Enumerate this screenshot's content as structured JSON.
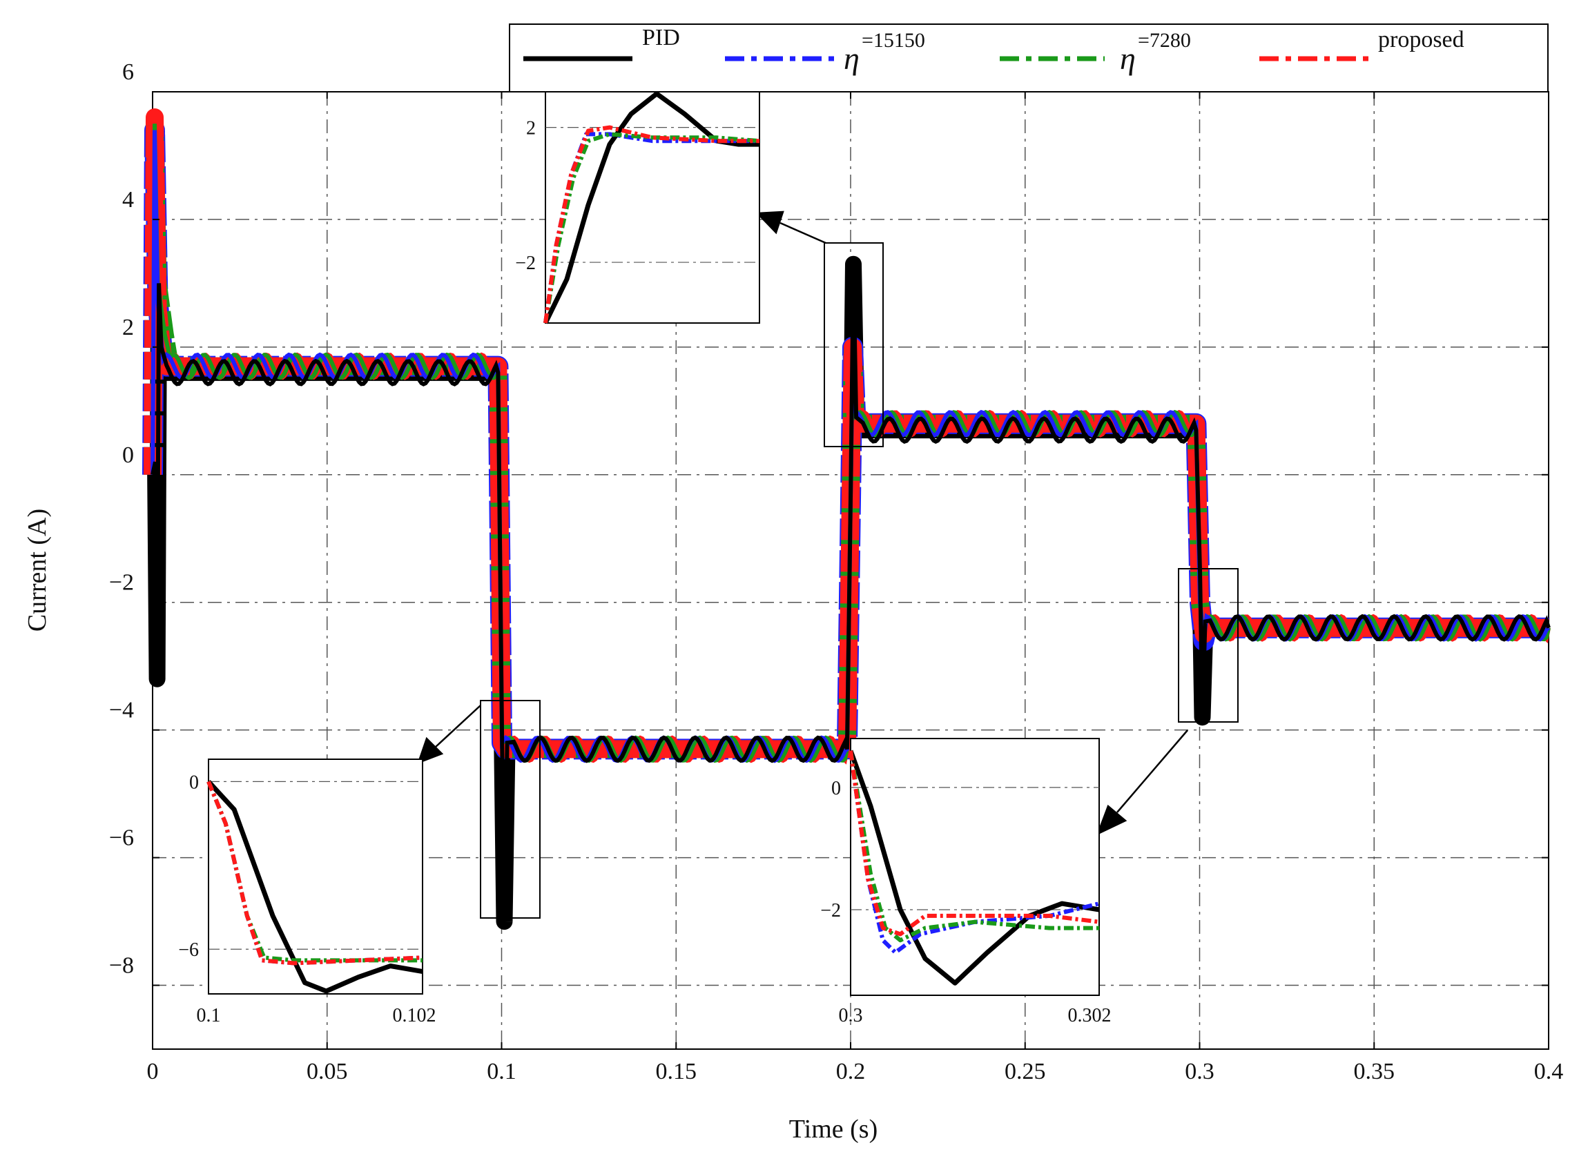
{
  "chart_data": {
    "type": "line",
    "title": "",
    "xlabel": "Time (s)",
    "ylabel": "Current (A)",
    "xlim": [
      0,
      0.4
    ],
    "ylim": [
      -9,
      6
    ],
    "xticks": [
      0,
      0.05,
      0.1,
      0.15,
      0.2,
      0.25,
      0.3,
      0.35,
      0.4
    ],
    "xtick_labels": [
      "0",
      "0.05",
      "0.1",
      "0.15",
      "0.2",
      "0.25",
      "0.3",
      "0.35",
      "0.4"
    ],
    "yticks": [
      6,
      4,
      2,
      0,
      -2,
      -4,
      -6,
      -8
    ],
    "ytick_labels": [
      "6",
      "4",
      "2",
      "0",
      "−2",
      "−4",
      "−6",
      "−8"
    ],
    "grid": true,
    "legend_position": "top",
    "legend": [
      {
        "key": "pid",
        "label": "PID",
        "symbol": "",
        "superscript": ""
      },
      {
        "key": "eta15150",
        "label": "",
        "symbol": "η",
        "superscript": "=15150"
      },
      {
        "key": "eta7280",
        "label": "",
        "symbol": "η",
        "superscript": "=7280"
      },
      {
        "key": "proposed",
        "label": "proposed",
        "symbol": "",
        "superscript": ""
      }
    ],
    "series": [
      {
        "name": "PID",
        "color": "#000000",
        "dash": "solid",
        "points": [
          [
            0,
            0
          ],
          [
            0.0008,
            0.2
          ],
          [
            0.0013,
            -3.2
          ],
          [
            0.0018,
            3.0
          ],
          [
            0.0025,
            2.0
          ],
          [
            0.004,
            1.6
          ],
          [
            0.099,
            1.6
          ],
          [
            0.1001,
            -4.0
          ],
          [
            0.1008,
            -7.0
          ],
          [
            0.1016,
            -4.2
          ],
          [
            0.1035,
            -4.3
          ],
          [
            0.199,
            -4.3
          ],
          [
            0.2001,
            0.0
          ],
          [
            0.2008,
            3.3
          ],
          [
            0.2016,
            0.9
          ],
          [
            0.2035,
            0.7
          ],
          [
            0.299,
            0.7
          ],
          [
            0.3001,
            -1.5
          ],
          [
            0.3008,
            -3.8
          ],
          [
            0.3016,
            -2.3
          ],
          [
            0.303,
            -2.4
          ],
          [
            0.4,
            -2.4
          ]
        ]
      },
      {
        "name": "η=15150",
        "color": "#1f1fff",
        "dash": "dash",
        "points": [
          [
            0,
            0
          ],
          [
            0.0006,
            5.4
          ],
          [
            0.0015,
            2.7
          ],
          [
            0.003,
            1.8
          ],
          [
            0.004,
            1.7
          ],
          [
            0.099,
            1.7
          ],
          [
            0.1001,
            -4.2
          ],
          [
            0.1012,
            -4.3
          ],
          [
            0.199,
            -4.3
          ],
          [
            0.2001,
            0.0
          ],
          [
            0.2006,
            2.0
          ],
          [
            0.2015,
            0.8
          ],
          [
            0.299,
            0.8
          ],
          [
            0.3001,
            -2.0
          ],
          [
            0.3012,
            -2.6
          ],
          [
            0.302,
            -2.4
          ],
          [
            0.4,
            -2.4
          ]
        ]
      },
      {
        "name": "η=7280",
        "color": "#1a9a1a",
        "dash": "dashdot",
        "points": [
          [
            0,
            0
          ],
          [
            0.0006,
            5.5
          ],
          [
            0.0015,
            3.0
          ],
          [
            0.0035,
            2.2
          ],
          [
            0.005,
            1.7
          ],
          [
            0.099,
            1.7
          ],
          [
            0.1001,
            -4.2
          ],
          [
            0.1012,
            -4.3
          ],
          [
            0.199,
            -4.3
          ],
          [
            0.2001,
            0.0
          ],
          [
            0.2006,
            2.0
          ],
          [
            0.2015,
            0.8
          ],
          [
            0.299,
            0.8
          ],
          [
            0.3001,
            -2.0
          ],
          [
            0.3012,
            -2.5
          ],
          [
            0.302,
            -2.4
          ],
          [
            0.4,
            -2.4
          ]
        ]
      },
      {
        "name": "proposed",
        "color": "#ff1a1a",
        "dash": "dashdot",
        "points": [
          [
            0,
            0
          ],
          [
            0.0006,
            5.6
          ],
          [
            0.0015,
            2.6
          ],
          [
            0.003,
            1.8
          ],
          [
            0.004,
            1.7
          ],
          [
            0.099,
            1.7
          ],
          [
            0.1001,
            -4.2
          ],
          [
            0.1012,
            -4.3
          ],
          [
            0.199,
            -4.3
          ],
          [
            0.2001,
            0.0
          ],
          [
            0.2006,
            2.0
          ],
          [
            0.2015,
            0.8
          ],
          [
            0.299,
            0.8
          ],
          [
            0.3001,
            -2.0
          ],
          [
            0.3012,
            -2.5
          ],
          [
            0.302,
            -2.4
          ],
          [
            0.4,
            -2.4
          ]
        ]
      }
    ],
    "insets": [
      {
        "name": "zoom-0.1",
        "xtick_labels": [
          "0.1",
          "0.102"
        ],
        "ytick_labels": [
          "0",
          "−6"
        ],
        "series": [
          {
            "name": "PID",
            "points": [
              [
                0,
                0
              ],
              [
                0.12,
                -1.0
              ],
              [
                0.3,
                -4.8
              ],
              [
                0.45,
                -7.2
              ],
              [
                0.55,
                -7.5
              ],
              [
                0.7,
                -7.0
              ],
              [
                0.85,
                -6.6
              ],
              [
                1.0,
                -6.8
              ]
            ]
          },
          {
            "name": "η=15150",
            "points": [
              [
                0,
                0
              ],
              [
                0.08,
                -1.5
              ],
              [
                0.18,
                -4.8
              ],
              [
                0.25,
                -6.4
              ],
              [
                0.4,
                -6.5
              ],
              [
                0.7,
                -6.4
              ],
              [
                1.0,
                -6.3
              ]
            ]
          },
          {
            "name": "η=7280",
            "points": [
              [
                0,
                0
              ],
              [
                0.08,
                -1.5
              ],
              [
                0.18,
                -4.8
              ],
              [
                0.26,
                -6.3
              ],
              [
                0.4,
                -6.4
              ],
              [
                0.7,
                -6.4
              ],
              [
                1.0,
                -6.4
              ]
            ]
          },
          {
            "name": "proposed",
            "points": [
              [
                0,
                0
              ],
              [
                0.08,
                -1.5
              ],
              [
                0.18,
                -4.8
              ],
              [
                0.25,
                -6.4
              ],
              [
                0.4,
                -6.5
              ],
              [
                0.7,
                -6.4
              ],
              [
                1.0,
                -6.3
              ]
            ]
          }
        ]
      },
      {
        "name": "zoom-0.2",
        "xtick_labels": [],
        "ytick_labels": [
          "2",
          "−2"
        ],
        "series": [
          {
            "name": "PID",
            "points": [
              [
                0,
                -3.8
              ],
              [
                0.1,
                -2.5
              ],
              [
                0.2,
                -0.3
              ],
              [
                0.3,
                1.5
              ],
              [
                0.4,
                2.4
              ],
              [
                0.52,
                3.0
              ],
              [
                0.65,
                2.4
              ],
              [
                0.8,
                1.6
              ],
              [
                0.9,
                1.5
              ],
              [
                1.0,
                1.5
              ]
            ]
          },
          {
            "name": "η=15150",
            "points": [
              [
                0,
                -3.8
              ],
              [
                0.05,
                -1.5
              ],
              [
                0.12,
                0.6
              ],
              [
                0.19,
                1.8
              ],
              [
                0.3,
                1.8
              ],
              [
                0.5,
                1.6
              ],
              [
                0.8,
                1.6
              ],
              [
                1.0,
                1.6
              ]
            ]
          },
          {
            "name": "η=7280",
            "points": [
              [
                0,
                -3.8
              ],
              [
                0.06,
                -1.5
              ],
              [
                0.13,
                0.5
              ],
              [
                0.2,
                1.6
              ],
              [
                0.3,
                1.8
              ],
              [
                0.5,
                1.7
              ],
              [
                0.8,
                1.7
              ],
              [
                1.0,
                1.6
              ]
            ]
          },
          {
            "name": "proposed",
            "points": [
              [
                0,
                -3.8
              ],
              [
                0.05,
                -1.5
              ],
              [
                0.12,
                0.6
              ],
              [
                0.2,
                1.9
              ],
              [
                0.3,
                2.0
              ],
              [
                0.5,
                1.7
              ],
              [
                0.8,
                1.6
              ],
              [
                1.0,
                1.6
              ]
            ]
          }
        ]
      },
      {
        "name": "zoom-0.3",
        "xtick_labels": [
          "0.3",
          "0.302"
        ],
        "ytick_labels": [
          "0",
          "−2"
        ],
        "series": [
          {
            "name": "PID",
            "points": [
              [
                0,
                0.6
              ],
              [
                0.08,
                -0.3
              ],
              [
                0.2,
                -2.0
              ],
              [
                0.3,
                -2.8
              ],
              [
                0.42,
                -3.2
              ],
              [
                0.55,
                -2.7
              ],
              [
                0.72,
                -2.1
              ],
              [
                0.85,
                -1.9
              ],
              [
                1.0,
                -2.0
              ]
            ]
          },
          {
            "name": "η=15150",
            "points": [
              [
                0,
                0.6
              ],
              [
                0.07,
                -1.5
              ],
              [
                0.13,
                -2.5
              ],
              [
                0.18,
                -2.7
              ],
              [
                0.28,
                -2.4
              ],
              [
                0.5,
                -2.2
              ],
              [
                0.8,
                -2.1
              ],
              [
                1.0,
                -1.9
              ]
            ]
          },
          {
            "name": "η=7280",
            "points": [
              [
                0,
                0.6
              ],
              [
                0.08,
                -1.4
              ],
              [
                0.14,
                -2.3
              ],
              [
                0.2,
                -2.5
              ],
              [
                0.3,
                -2.3
              ],
              [
                0.5,
                -2.2
              ],
              [
                0.8,
                -2.3
              ],
              [
                1.0,
                -2.3
              ]
            ]
          },
          {
            "name": "proposed",
            "points": [
              [
                0,
                0.6
              ],
              [
                0.07,
                -1.5
              ],
              [
                0.13,
                -2.3
              ],
              [
                0.2,
                -2.4
              ],
              [
                0.3,
                -2.1
              ],
              [
                0.5,
                -2.1
              ],
              [
                0.8,
                -2.1
              ],
              [
                1.0,
                -2.2
              ]
            ]
          }
        ]
      }
    ]
  }
}
